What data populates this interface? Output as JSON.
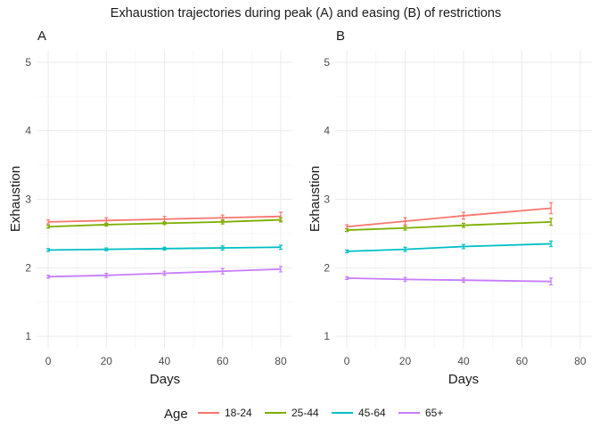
{
  "chart_data": {
    "type": "line",
    "title": "Exhaustion trajectories during peak (A) and easing (B) of restrictions",
    "legend": {
      "title": "Age",
      "placement": "bottom"
    },
    "series_colors": {
      "18-24": "#F8766D",
      "25-44": "#7CAE00",
      "45-64": "#00BFC4",
      "65+": "#C77CFF"
    },
    "panels": [
      {
        "label": "A",
        "xlabel": "Days",
        "ylabel": "Exhaustion",
        "xlim": [
          -4,
          84
        ],
        "ylim": [
          0.82,
          5.18
        ],
        "xticks": [
          0,
          20,
          40,
          60,
          80
        ],
        "yticks": [
          1,
          2,
          3,
          4,
          5
        ],
        "grid": true,
        "series": [
          {
            "name": "18-24",
            "points": [
              {
                "x": 0,
                "y": 2.67,
                "err": 0.03
              },
              {
                "x": 20,
                "y": 2.69,
                "err": 0.04
              },
              {
                "x": 40,
                "y": 2.71,
                "err": 0.04
              },
              {
                "x": 60,
                "y": 2.73,
                "err": 0.04
              },
              {
                "x": 80,
                "y": 2.75,
                "err": 0.06
              }
            ]
          },
          {
            "name": "25-44",
            "points": [
              {
                "x": 0,
                "y": 2.6,
                "err": 0.02
              },
              {
                "x": 20,
                "y": 2.63,
                "err": 0.02
              },
              {
                "x": 40,
                "y": 2.65,
                "err": 0.02
              },
              {
                "x": 60,
                "y": 2.67,
                "err": 0.03
              },
              {
                "x": 80,
                "y": 2.7,
                "err": 0.03
              }
            ]
          },
          {
            "name": "45-64",
            "points": [
              {
                "x": 0,
                "y": 2.26,
                "err": 0.02
              },
              {
                "x": 20,
                "y": 2.27,
                "err": 0.02
              },
              {
                "x": 40,
                "y": 2.28,
                "err": 0.02
              },
              {
                "x": 60,
                "y": 2.29,
                "err": 0.03
              },
              {
                "x": 80,
                "y": 2.3,
                "err": 0.03
              }
            ]
          },
          {
            "name": "65+",
            "points": [
              {
                "x": 0,
                "y": 1.87,
                "err": 0.02
              },
              {
                "x": 20,
                "y": 1.89,
                "err": 0.03
              },
              {
                "x": 40,
                "y": 1.92,
                "err": 0.03
              },
              {
                "x": 60,
                "y": 1.95,
                "err": 0.04
              },
              {
                "x": 80,
                "y": 1.98,
                "err": 0.04
              }
            ]
          }
        ]
      },
      {
        "label": "B",
        "xlabel": "Days",
        "ylabel": "Exhaustion",
        "xlim": [
          -4,
          84
        ],
        "ylim": [
          0.82,
          5.18
        ],
        "xticks": [
          0,
          20,
          40,
          60,
          80
        ],
        "yticks": [
          1,
          2,
          3,
          4,
          5
        ],
        "grid": true,
        "series": [
          {
            "name": "18-24",
            "points": [
              {
                "x": 0,
                "y": 2.6,
                "err": 0.03
              },
              {
                "x": 20,
                "y": 2.68,
                "err": 0.05
              },
              {
                "x": 40,
                "y": 2.76,
                "err": 0.05
              },
              {
                "x": 70,
                "y": 2.87,
                "err": 0.08
              }
            ]
          },
          {
            "name": "25-44",
            "points": [
              {
                "x": 0,
                "y": 2.55,
                "err": 0.02
              },
              {
                "x": 20,
                "y": 2.58,
                "err": 0.03
              },
              {
                "x": 40,
                "y": 2.62,
                "err": 0.03
              },
              {
                "x": 70,
                "y": 2.67,
                "err": 0.05
              }
            ]
          },
          {
            "name": "45-64",
            "points": [
              {
                "x": 0,
                "y": 2.24,
                "err": 0.02
              },
              {
                "x": 20,
                "y": 2.27,
                "err": 0.03
              },
              {
                "x": 40,
                "y": 2.31,
                "err": 0.03
              },
              {
                "x": 70,
                "y": 2.35,
                "err": 0.04
              }
            ]
          },
          {
            "name": "65+",
            "points": [
              {
                "x": 0,
                "y": 1.85,
                "err": 0.02
              },
              {
                "x": 20,
                "y": 1.83,
                "err": 0.03
              },
              {
                "x": 40,
                "y": 1.82,
                "err": 0.03
              },
              {
                "x": 70,
                "y": 1.8,
                "err": 0.05
              }
            ]
          }
        ]
      }
    ]
  }
}
